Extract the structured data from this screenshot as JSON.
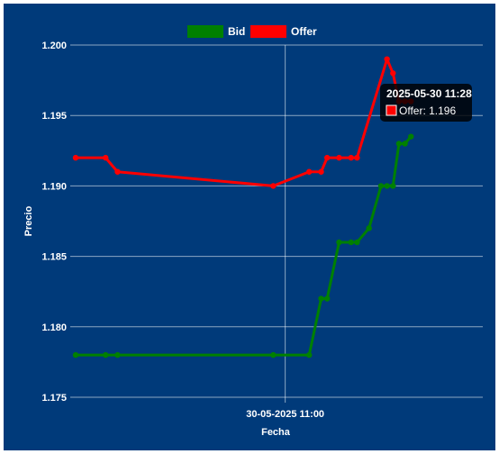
{
  "chart_data": {
    "type": "line",
    "xlabel": "Fecha",
    "ylabel": "Precio",
    "ylim": [
      1.175,
      1.2
    ],
    "y_ticks": [
      "1.200",
      "1.195",
      "1.190",
      "1.185",
      "1.180",
      "1.175"
    ],
    "x_ticks": [
      {
        "time": "2025-05-30 11:00",
        "label": "30-05-2025 11:00"
      }
    ],
    "xlim": [
      "2025-05-30 10:25",
      "2025-05-30 11:33"
    ],
    "grid": true,
    "legend_position": "top",
    "background_color": "#003a7a",
    "series": [
      {
        "name": "Bid",
        "color": "#008000",
        "points": [
          [
            "2025-05-30 10:25",
            1.178
          ],
          [
            "2025-05-30 10:30",
            1.178
          ],
          [
            "2025-05-30 10:32",
            1.178
          ],
          [
            "2025-05-30 10:58",
            1.178
          ],
          [
            "2025-05-30 11:04",
            1.178
          ],
          [
            "2025-05-30 11:06",
            1.182
          ],
          [
            "2025-05-30 11:07",
            1.182
          ],
          [
            "2025-05-30 11:09",
            1.186
          ],
          [
            "2025-05-30 11:11",
            1.186
          ],
          [
            "2025-05-30 11:12",
            1.186
          ],
          [
            "2025-05-30 11:14",
            1.187
          ],
          [
            "2025-05-30 11:16",
            1.19
          ],
          [
            "2025-05-30 11:17",
            1.19
          ],
          [
            "2025-05-30 11:18",
            1.19
          ],
          [
            "2025-05-30 11:19",
            1.193
          ],
          [
            "2025-05-30 11:20",
            1.193
          ],
          [
            "2025-05-30 11:21",
            1.1935
          ]
        ]
      },
      {
        "name": "Offer",
        "color": "#ff0000",
        "points": [
          [
            "2025-05-30 10:25",
            1.192
          ],
          [
            "2025-05-30 10:30",
            1.192
          ],
          [
            "2025-05-30 10:32",
            1.191
          ],
          [
            "2025-05-30 10:58",
            1.19
          ],
          [
            "2025-05-30 11:04",
            1.191
          ],
          [
            "2025-05-30 11:06",
            1.191
          ],
          [
            "2025-05-30 11:07",
            1.192
          ],
          [
            "2025-05-30 11:09",
            1.192
          ],
          [
            "2025-05-30 11:11",
            1.192
          ],
          [
            "2025-05-30 11:12",
            1.192
          ],
          [
            "2025-05-30 11:17",
            1.199
          ],
          [
            "2025-05-30 11:18",
            1.198
          ],
          [
            "2025-05-30 11:19",
            1.196
          ],
          [
            "2025-05-30 11:20",
            1.196
          ],
          [
            "2025-05-30 11:21",
            1.196
          ]
        ]
      }
    ],
    "tooltip": {
      "title": "2025-05-30 11:28",
      "label": "Offer: 1.196",
      "series": "Offer"
    },
    "crosshair_time": "2025-05-30 11:00"
  }
}
